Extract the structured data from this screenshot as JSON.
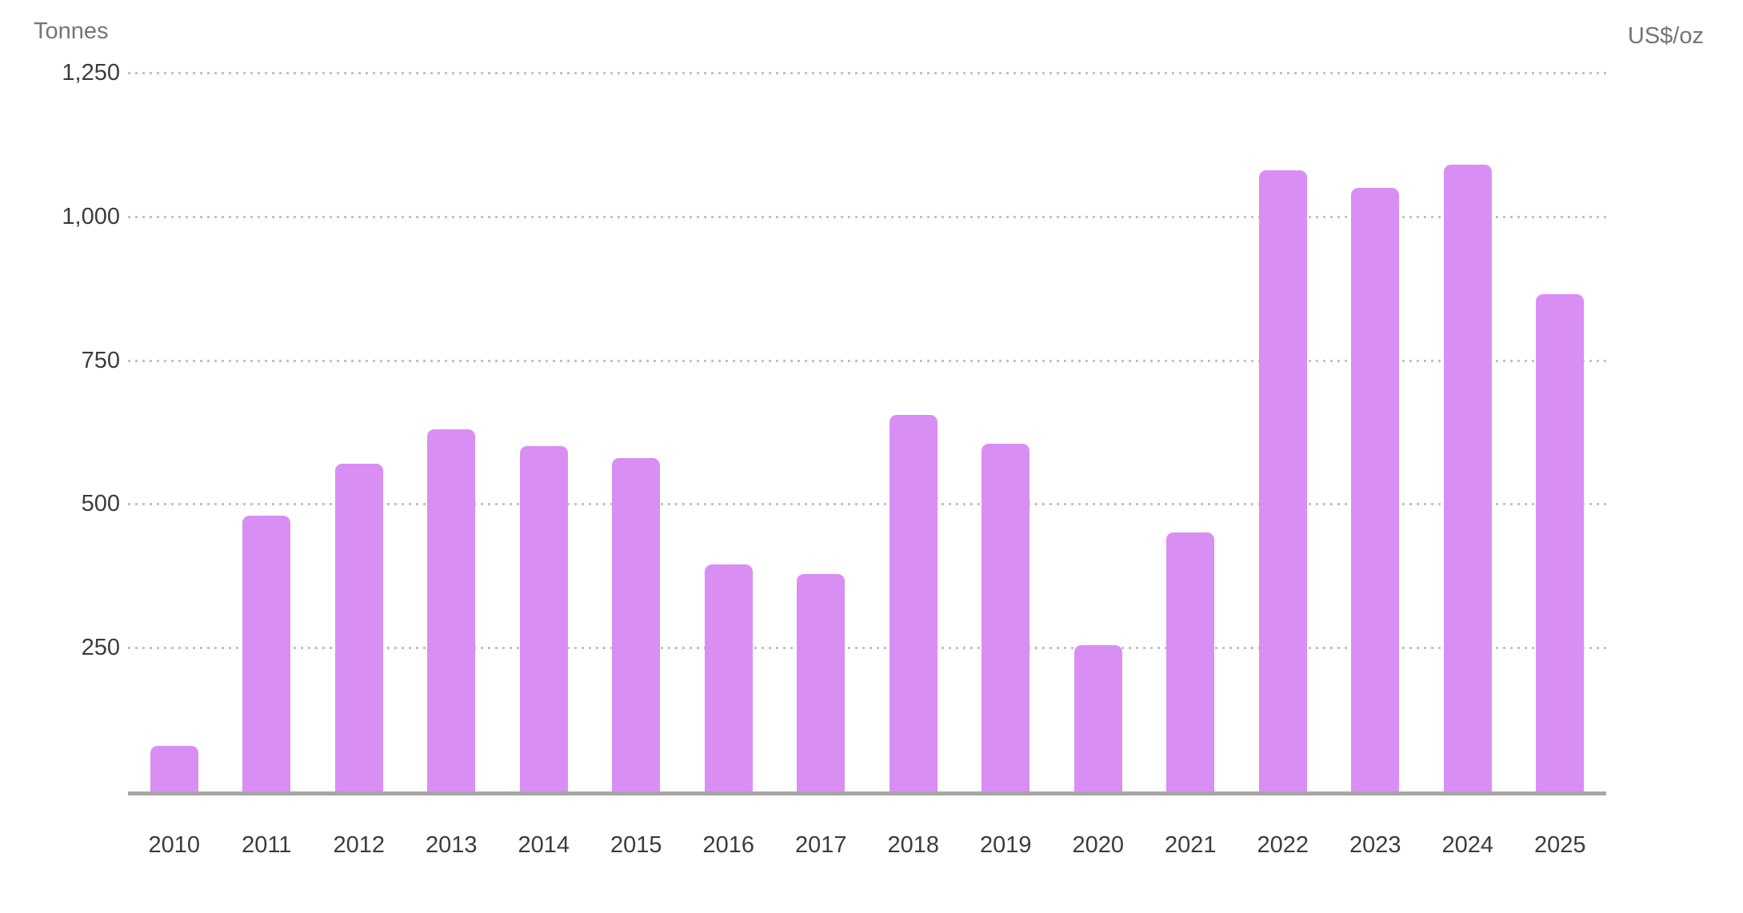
{
  "chart_data": {
    "type": "bar",
    "title": "",
    "left_axis_title": "Tonnes",
    "right_axis_title": "US$/oz",
    "categories": [
      "2010",
      "2011",
      "2012",
      "2013",
      "2014",
      "2015",
      "2016",
      "2017",
      "2018",
      "2019",
      "2020",
      "2021",
      "2022",
      "2023",
      "2024",
      "2025"
    ],
    "series": [
      {
        "name": "Tonnes",
        "values": [
          79,
          480,
          570,
          630,
          600,
          580,
          395,
          378,
          655,
          605,
          255,
          450,
          1080,
          1050,
          1090,
          865
        ]
      }
    ],
    "ylim": [
      0,
      1250
    ],
    "y_ticks": [
      {
        "value": 1250,
        "label": "1,250"
      },
      {
        "value": 1000,
        "label": "1,000"
      },
      {
        "value": 750,
        "label": "750"
      },
      {
        "value": 500,
        "label": "500"
      },
      {
        "value": 250,
        "label": "250"
      }
    ],
    "right_axis_ticks": [],
    "legend": "none",
    "grid": "horizontal-dotted",
    "colors": {
      "bar": "#d98ef4",
      "axis_line": "#a6a6a6",
      "gridline": "#c2c2c2",
      "tick_label": "#3c3c3c",
      "axis_title": "#757575",
      "background": "#ffffff"
    }
  }
}
